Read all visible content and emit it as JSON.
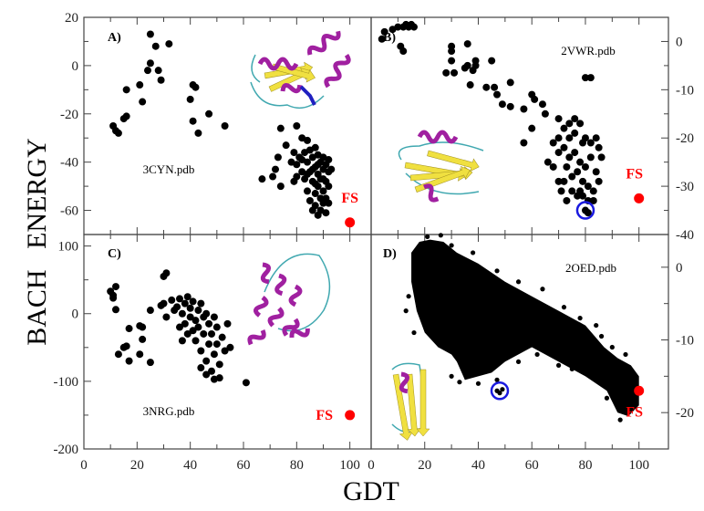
{
  "figure": {
    "ylabel": "BACH   ENERGY",
    "xlabel": "GDT"
  },
  "colors": {
    "points": "#000000",
    "native": "#ff0000",
    "highlight_circle": "#1a1adf",
    "helix": "#a020a0",
    "strand": "#f0e040",
    "coil": "#40a8b0"
  },
  "chart_data": [
    {
      "type": "scatter",
      "panel": "A)",
      "label": "3CYN.pdb",
      "native_label": "FS",
      "xlim": [
        0,
        108
      ],
      "ylim": [
        -70,
        20
      ],
      "y_axis_side": "left",
      "xticks": [
        0,
        20,
        40,
        60,
        80,
        100
      ],
      "yticks": [
        -60,
        -40,
        -20,
        0,
        20
      ],
      "native": [
        100,
        -65
      ],
      "points": [
        [
          11,
          -25
        ],
        [
          12,
          -27
        ],
        [
          13,
          -28
        ],
        [
          15,
          -22
        ],
        [
          16,
          -21
        ],
        [
          16,
          -10
        ],
        [
          21,
          -8
        ],
        [
          22,
          -15
        ],
        [
          24,
          -2
        ],
        [
          25,
          1
        ],
        [
          25,
          13
        ],
        [
          27,
          8
        ],
        [
          28,
          -2
        ],
        [
          29,
          -6
        ],
        [
          32,
          9
        ],
        [
          40,
          -14
        ],
        [
          41,
          -23
        ],
        [
          41,
          -8
        ],
        [
          42,
          -9
        ],
        [
          43,
          -28
        ],
        [
          47,
          -20
        ],
        [
          53,
          -25
        ],
        [
          67,
          -47
        ],
        [
          71,
          -46
        ],
        [
          72,
          -43
        ],
        [
          73,
          -38
        ],
        [
          74,
          -50
        ],
        [
          74,
          -26
        ],
        [
          76,
          -33
        ],
        [
          79,
          -48
        ],
        [
          80,
          -25
        ],
        [
          79,
          -36
        ],
        [
          82,
          -30
        ],
        [
          84,
          -31
        ],
        [
          78,
          -40
        ],
        [
          80,
          -41
        ],
        [
          81,
          -38
        ],
        [
          82,
          -44
        ],
        [
          83,
          -36
        ],
        [
          83,
          -47
        ],
        [
          84,
          -40
        ],
        [
          84,
          -52
        ],
        [
          85,
          -35
        ],
        [
          85,
          -44
        ],
        [
          85,
          -56
        ],
        [
          86,
          -38
        ],
        [
          86,
          -48
        ],
        [
          86,
          -60
        ],
        [
          87,
          -34
        ],
        [
          87,
          -42
        ],
        [
          87,
          -53
        ],
        [
          87,
          -58
        ],
        [
          88,
          -37
        ],
        [
          88,
          -45
        ],
        [
          88,
          -50
        ],
        [
          88,
          -62
        ],
        [
          89,
          -40
        ],
        [
          89,
          -47
        ],
        [
          89,
          -55
        ],
        [
          89,
          -60
        ],
        [
          90,
          -38
        ],
        [
          90,
          -43
        ],
        [
          90,
          -52
        ],
        [
          90,
          -57
        ],
        [
          91,
          -41
        ],
        [
          91,
          -48
        ],
        [
          91,
          -55
        ],
        [
          91,
          -61
        ],
        [
          92,
          -39
        ],
        [
          92,
          -44
        ],
        [
          92,
          -50
        ],
        [
          92,
          -57
        ],
        [
          93,
          -43
        ],
        [
          80,
          -46
        ],
        [
          82,
          -39
        ],
        [
          84,
          -45
        ],
        [
          86,
          -43
        ],
        [
          88,
          -41
        ],
        [
          90,
          -47
        ],
        [
          87,
          -49
        ]
      ]
    },
    {
      "type": "scatter",
      "panel": "B)",
      "label": "2VWR.pdb",
      "native_label": "FS",
      "xlim": [
        0,
        111
      ],
      "ylim": [
        -40,
        5
      ],
      "y_axis_side": "right",
      "xticks": [
        0,
        20,
        40,
        60,
        80,
        100
      ],
      "yticks": [
        -40,
        -30,
        -20,
        -10,
        0
      ],
      "native": [
        100,
        -32.5
      ],
      "circled": [
        80,
        -35
      ],
      "points": [
        [
          4,
          0.5
        ],
        [
          5,
          2
        ],
        [
          8,
          2.5
        ],
        [
          10,
          3
        ],
        [
          12,
          3
        ],
        [
          13,
          3.5
        ],
        [
          14,
          3
        ],
        [
          15,
          3.5
        ],
        [
          16,
          3
        ],
        [
          11,
          -1
        ],
        [
          12,
          -2
        ],
        [
          30,
          -1
        ],
        [
          30,
          -2
        ],
        [
          30,
          -4
        ],
        [
          28,
          -6.5
        ],
        [
          31,
          -6.5
        ],
        [
          35,
          -5.5
        ],
        [
          36,
          -5
        ],
        [
          38,
          -6
        ],
        [
          39,
          -5
        ],
        [
          39,
          -4
        ],
        [
          36,
          -0.5
        ],
        [
          37,
          -9
        ],
        [
          43,
          -9.5
        ],
        [
          45,
          -4
        ],
        [
          46,
          -9.5
        ],
        [
          47,
          -11
        ],
        [
          49,
          -13
        ],
        [
          52,
          -13.5
        ],
        [
          52,
          -8.5
        ],
        [
          57,
          -14
        ],
        [
          60,
          -11
        ],
        [
          61,
          -12
        ],
        [
          64,
          -13
        ],
        [
          57,
          -21
        ],
        [
          60,
          -18
        ],
        [
          66,
          -25
        ],
        [
          68,
          -26
        ],
        [
          70,
          -29
        ],
        [
          71,
          -31
        ],
        [
          73,
          -33
        ],
        [
          80,
          -7.5
        ],
        [
          82,
          -7.5
        ],
        [
          65,
          -15
        ],
        [
          70,
          -16
        ],
        [
          72,
          -18
        ],
        [
          74,
          -17
        ],
        [
          76,
          -19
        ],
        [
          78,
          -17
        ],
        [
          80,
          -20
        ],
        [
          82,
          -21
        ],
        [
          84,
          -20
        ],
        [
          70,
          -20
        ],
        [
          72,
          -22
        ],
        [
          74,
          -24
        ],
        [
          76,
          -23
        ],
        [
          78,
          -25
        ],
        [
          80,
          -26
        ],
        [
          82,
          -24
        ],
        [
          84,
          -27
        ],
        [
          70,
          -23
        ],
        [
          73,
          -26
        ],
        [
          75,
          -28
        ],
        [
          77,
          -27
        ],
        [
          79,
          -29
        ],
        [
          81,
          -30
        ],
        [
          83,
          -31
        ],
        [
          85,
          -29
        ],
        [
          72,
          -29
        ],
        [
          75,
          -31
        ],
        [
          77,
          -32
        ],
        [
          79,
          -32
        ],
        [
          81,
          -33
        ],
        [
          83,
          -33
        ],
        [
          68,
          -21
        ],
        [
          76,
          -16
        ],
        [
          86,
          -24
        ],
        [
          85,
          -22
        ],
        [
          79,
          -21
        ],
        [
          74,
          -20
        ],
        [
          78,
          -31
        ],
        [
          80,
          -35
        ],
        [
          81,
          -35.5
        ]
      ]
    },
    {
      "type": "scatter",
      "panel": "C)",
      "label": "3NRG.pdb",
      "native_label": "FS",
      "xlim": [
        0,
        108
      ],
      "ylim": [
        -200,
        117
      ],
      "y_axis_side": "left",
      "xticks": [
        0,
        20,
        40,
        60,
        80,
        100
      ],
      "yticks": [
        -200,
        -100,
        0,
        100
      ],
      "native": [
        100,
        -150
      ],
      "points": [
        [
          10,
          33
        ],
        [
          11,
          27
        ],
        [
          11,
          23
        ],
        [
          12,
          40
        ],
        [
          12,
          6
        ],
        [
          13,
          -60
        ],
        [
          15,
          -50
        ],
        [
          16,
          -48
        ],
        [
          17,
          -22
        ],
        [
          17,
          -70
        ],
        [
          21,
          -18
        ],
        [
          21,
          -60
        ],
        [
          22,
          -20
        ],
        [
          22,
          -38
        ],
        [
          25,
          5
        ],
        [
          25,
          -72
        ],
        [
          30,
          55
        ],
        [
          31,
          60
        ],
        [
          31,
          -5
        ],
        [
          29,
          12
        ],
        [
          30,
          15
        ],
        [
          33,
          20
        ],
        [
          35,
          10
        ],
        [
          36,
          22
        ],
        [
          37,
          0
        ],
        [
          38,
          -15
        ],
        [
          38,
          15
        ],
        [
          39,
          25
        ],
        [
          40,
          -5
        ],
        [
          40,
          8
        ],
        [
          41,
          -25
        ],
        [
          41,
          18
        ],
        [
          42,
          -10
        ],
        [
          42,
          -40
        ],
        [
          43,
          5
        ],
        [
          43,
          -20
        ],
        [
          44,
          -55
        ],
        [
          44,
          15
        ],
        [
          45,
          -30
        ],
        [
          45,
          -5
        ],
        [
          46,
          -70
        ],
        [
          46,
          0
        ],
        [
          47,
          -45
        ],
        [
          47,
          -15
        ],
        [
          48,
          -85
        ],
        [
          48,
          -30
        ],
        [
          49,
          -60
        ],
        [
          49,
          -5
        ],
        [
          50,
          -20
        ],
        [
          50,
          -45
        ],
        [
          51,
          -75
        ],
        [
          51,
          -95
        ],
        [
          52,
          -35
        ],
        [
          53,
          -55
        ],
        [
          54,
          -15
        ],
        [
          55,
          -50
        ],
        [
          46,
          -90
        ],
        [
          49,
          -97
        ],
        [
          39,
          -30
        ],
        [
          36,
          -20
        ],
        [
          34,
          5
        ],
        [
          37,
          -40
        ],
        [
          44,
          -80
        ],
        [
          61,
          -102
        ]
      ]
    },
    {
      "type": "scatter",
      "panel": "D)",
      "label": "2OED.pdb",
      "native_label": "FS",
      "xlim": [
        0,
        111
      ],
      "ylim": [
        -25,
        4.5
      ],
      "y_axis_side": "right",
      "xticks": [
        0,
        20,
        40,
        60,
        80,
        100
      ],
      "yticks": [
        -20,
        -10,
        0
      ],
      "native": [
        100,
        -17
      ],
      "circled": [
        48,
        -17
      ],
      "cloud_envelope": [
        [
          15,
          2
        ],
        [
          18,
          3.5
        ],
        [
          22,
          3.8
        ],
        [
          27,
          3.5
        ],
        [
          32,
          2
        ],
        [
          40,
          0.5
        ],
        [
          50,
          -2
        ],
        [
          60,
          -4
        ],
        [
          70,
          -6
        ],
        [
          80,
          -8
        ],
        [
          87,
          -11
        ],
        [
          92,
          -12.5
        ],
        [
          97,
          -13.5
        ],
        [
          100,
          -15
        ],
        [
          100,
          -19
        ],
        [
          96,
          -20.5
        ],
        [
          92,
          -20
        ],
        [
          88,
          -17
        ],
        [
          80,
          -15
        ],
        [
          70,
          -13
        ],
        [
          60,
          -11
        ],
        [
          50,
          -13
        ],
        [
          45,
          -14.5
        ],
        [
          35,
          -15.5
        ],
        [
          32,
          -13
        ],
        [
          30,
          -12
        ],
        [
          25,
          -11
        ],
        [
          20,
          -9
        ],
        [
          17,
          -6
        ],
        [
          15,
          -2
        ]
      ],
      "points": [
        [
          14,
          -4
        ],
        [
          13,
          -6
        ],
        [
          16,
          -9
        ],
        [
          21,
          4.2
        ],
        [
          26,
          4.4
        ],
        [
          30,
          3
        ],
        [
          38,
          2
        ],
        [
          47,
          -0.5
        ],
        [
          55,
          -2
        ],
        [
          64,
          -3
        ],
        [
          72,
          -5.5
        ],
        [
          78,
          -7
        ],
        [
          84,
          -8
        ],
        [
          86,
          -9.5
        ],
        [
          90,
          -11
        ],
        [
          95,
          -12
        ],
        [
          80,
          -14.5
        ],
        [
          75,
          -14
        ],
        [
          70,
          -13.5
        ],
        [
          62,
          -12
        ],
        [
          55,
          -13
        ],
        [
          47,
          -15.5
        ],
        [
          40,
          -16
        ],
        [
          33,
          -15.8
        ],
        [
          30,
          -15
        ],
        [
          88,
          -18
        ],
        [
          93,
          -21
        ],
        [
          47,
          -17
        ],
        [
          48,
          -17.3
        ],
        [
          49,
          -16.8
        ]
      ]
    }
  ]
}
